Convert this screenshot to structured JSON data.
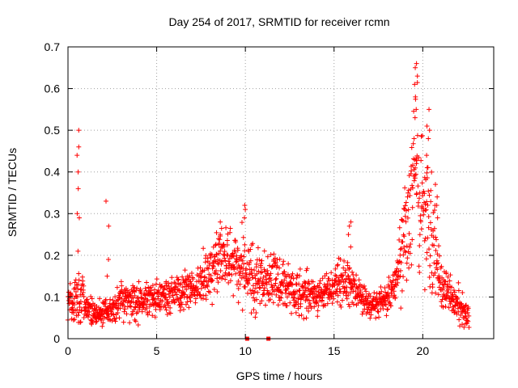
{
  "chart_data": {
    "type": "scatter",
    "title": "Day 254 of 2017, SRMTID for receiver rcmn",
    "xlabel": "GPS time / hours",
    "ylabel": "SRMTID / TECUs",
    "xlim": [
      0,
      24
    ],
    "ylim": [
      0,
      0.7
    ],
    "xticks": [
      "0",
      "5",
      "10",
      "15",
      "20"
    ],
    "yticks": [
      "0",
      "0.1",
      "0.2",
      "0.3",
      "0.4",
      "0.5",
      "0.6",
      "0.7"
    ],
    "grid": true,
    "marker": "+",
    "series": [
      {
        "name": "SRMTID",
        "color": "#ff0000",
        "profile": [
          [
            0.0,
            0.1,
            0.03
          ],
          [
            0.3,
            0.07,
            0.03
          ],
          [
            0.6,
            0.12,
            0.05
          ],
          [
            1.0,
            0.08,
            0.03
          ],
          [
            1.5,
            0.06,
            0.02
          ],
          [
            2.0,
            0.06,
            0.02
          ],
          [
            2.5,
            0.07,
            0.02
          ],
          [
            3.0,
            0.09,
            0.03
          ],
          [
            4.0,
            0.09,
            0.03
          ],
          [
            5.0,
            0.1,
            0.03
          ],
          [
            6.0,
            0.11,
            0.03
          ],
          [
            7.0,
            0.12,
            0.03
          ],
          [
            7.5,
            0.14,
            0.04
          ],
          [
            8.0,
            0.16,
            0.04
          ],
          [
            8.5,
            0.19,
            0.05
          ],
          [
            9.0,
            0.2,
            0.05
          ],
          [
            9.5,
            0.18,
            0.05
          ],
          [
            10.0,
            0.16,
            0.05
          ],
          [
            10.5,
            0.14,
            0.05
          ],
          [
            11.0,
            0.15,
            0.05
          ],
          [
            11.5,
            0.15,
            0.04
          ],
          [
            12.0,
            0.13,
            0.04
          ],
          [
            12.5,
            0.12,
            0.04
          ],
          [
            13.0,
            0.11,
            0.04
          ],
          [
            14.0,
            0.11,
            0.03
          ],
          [
            15.0,
            0.12,
            0.03
          ],
          [
            15.5,
            0.14,
            0.04
          ],
          [
            16.0,
            0.13,
            0.04
          ],
          [
            16.5,
            0.1,
            0.03
          ],
          [
            17.0,
            0.08,
            0.02
          ],
          [
            18.0,
            0.09,
            0.03
          ],
          [
            18.5,
            0.13,
            0.04
          ],
          [
            19.0,
            0.25,
            0.1
          ],
          [
            19.5,
            0.38,
            0.15
          ],
          [
            20.0,
            0.35,
            0.12
          ],
          [
            20.5,
            0.25,
            0.1
          ],
          [
            21.0,
            0.13,
            0.04
          ],
          [
            21.5,
            0.11,
            0.03
          ],
          [
            22.0,
            0.08,
            0.03
          ],
          [
            22.6,
            0.05,
            0.02
          ]
        ],
        "spikes": [
          {
            "x": 0.6,
            "values": [
              0.5,
              0.46,
              0.44,
              0.4,
              0.36,
              0.3,
              0.29,
              0.21
            ]
          },
          {
            "x": 2.2,
            "values": [
              0.33,
              0.27,
              0.19,
              0.15
            ]
          },
          {
            "x": 10.0,
            "values": [
              0.32,
              0.31,
              0.29
            ]
          },
          {
            "x": 8.5,
            "values": [
              0.28,
              0.25,
              0.24
            ]
          },
          {
            "x": 15.9,
            "values": [
              0.28,
              0.27,
              0.25,
              0.22
            ]
          },
          {
            "x": 19.6,
            "values": [
              0.66,
              0.65,
              0.63,
              0.61,
              0.58,
              0.55,
              0.53,
              0.48
            ]
          },
          {
            "x": 20.3,
            "values": [
              0.55,
              0.51,
              0.5,
              0.48,
              0.44,
              0.41
            ]
          },
          {
            "x": 20.8,
            "values": [
              0.37,
              0.34,
              0.32,
              0.29
            ]
          }
        ],
        "zero_points": [
          10.1,
          11.3
        ]
      }
    ]
  }
}
